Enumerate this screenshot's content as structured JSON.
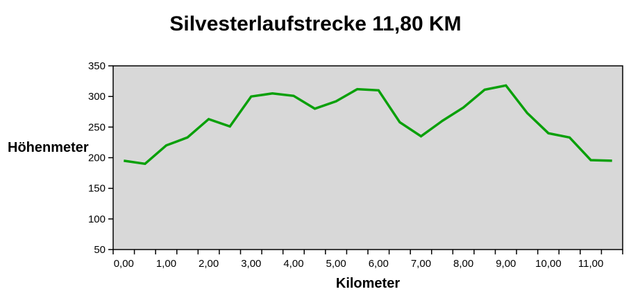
{
  "chart_data": {
    "type": "line",
    "title": "Silvesterlaufstrecke 11,80 KM",
    "xlabel": "Kilometer",
    "ylabel": "Höhenmeter",
    "categories": [
      "0,00",
      "0,50",
      "1,00",
      "1,50",
      "2,00",
      "2,50",
      "3,00",
      "3,50",
      "4,00",
      "4,50",
      "5,00",
      "5,50",
      "6,00",
      "6,50",
      "7,00",
      "7,50",
      "8,00",
      "8,50",
      "9,00",
      "9,50",
      "10,00",
      "10,50",
      "11,00",
      "11,50"
    ],
    "values": [
      195,
      190,
      220,
      233,
      263,
      251,
      300,
      305,
      301,
      280,
      292,
      312,
      310,
      258,
      235,
      260,
      282,
      311,
      318,
      273,
      240,
      233,
      196,
      195
    ],
    "x_label_every": 2,
    "ylim": [
      50,
      350
    ],
    "y_ticks": [
      350,
      300,
      250,
      200,
      150,
      100,
      50
    ],
    "grid": false,
    "legend": "none",
    "line_color": "#0aa00a",
    "plot_bg_color": "#d8d8d8",
    "axis_color": "#000000",
    "tick_label_color": "#000000"
  }
}
